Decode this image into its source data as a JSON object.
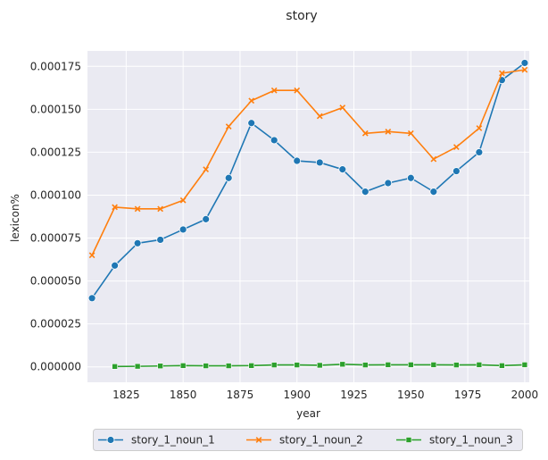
{
  "chart_data": {
    "type": "line",
    "title": "story",
    "xlabel": "year",
    "ylabel": "lexicon%",
    "xlim": [
      1808,
      2002
    ],
    "ylim": [
      -9e-06,
      0.000184
    ],
    "x_ticks": [
      1825,
      1850,
      1875,
      1900,
      1925,
      1950,
      1975,
      2000
    ],
    "x_tick_labels": [
      "1825",
      "1850",
      "1875",
      "1900",
      "1925",
      "1950",
      "1975",
      "2000"
    ],
    "y_ticks": [
      0,
      2.5e-05,
      5e-05,
      7.5e-05,
      0.0001,
      0.000125,
      0.00015,
      0.000175
    ],
    "y_tick_labels": [
      "0.000000",
      "0.000025",
      "0.000050",
      "0.000075",
      "0.000100",
      "0.000125",
      "0.000150",
      "0.000175"
    ],
    "grid": true,
    "background": "#eaeaf2",
    "legend_position": "bottom",
    "series": [
      {
        "name": "story_1_noun_1",
        "color": "#1f77b4",
        "marker": "circle",
        "x": [
          1810,
          1820,
          1830,
          1840,
          1850,
          1860,
          1870,
          1880,
          1890,
          1900,
          1910,
          1920,
          1930,
          1940,
          1950,
          1960,
          1970,
          1980,
          1990,
          2000
        ],
        "y": [
          4e-05,
          5.9e-05,
          7.2e-05,
          7.4e-05,
          8e-05,
          8.6e-05,
          0.00011,
          0.000142,
          0.000132,
          0.00012,
          0.000119,
          0.000115,
          0.000102,
          0.000107,
          0.00011,
          0.000102,
          0.000114,
          0.000125,
          0.000167,
          0.000177
        ]
      },
      {
        "name": "story_1_noun_2",
        "color": "#ff7f0e",
        "marker": "x",
        "x": [
          1810,
          1820,
          1830,
          1840,
          1850,
          1860,
          1870,
          1880,
          1890,
          1900,
          1910,
          1920,
          1930,
          1940,
          1950,
          1960,
          1970,
          1980,
          1990,
          2000
        ],
        "y": [
          6.5e-05,
          9.3e-05,
          9.2e-05,
          9.2e-05,
          9.7e-05,
          0.000115,
          0.00014,
          0.000155,
          0.000161,
          0.000161,
          0.000146,
          0.000151,
          0.000136,
          0.000137,
          0.000136,
          0.000121,
          0.000128,
          0.000139,
          0.000171,
          0.000173
        ]
      },
      {
        "name": "story_1_noun_3",
        "color": "#2ca02c",
        "marker": "square",
        "x": [
          1820,
          1830,
          1840,
          1850,
          1860,
          1870,
          1880,
          1890,
          1900,
          1910,
          1920,
          1930,
          1940,
          1950,
          1960,
          1970,
          1980,
          1990,
          2000
        ],
        "y": [
          2e-07,
          3e-07,
          5e-07,
          7e-07,
          6e-07,
          6e-07,
          7e-07,
          1.1e-06,
          1.1e-06,
          9e-07,
          1.5e-06,
          1.1e-06,
          1.2e-06,
          1.2e-06,
          1.2e-06,
          1.1e-06,
          1.2e-06,
          7e-07,
          1.2e-06
        ]
      }
    ]
  }
}
